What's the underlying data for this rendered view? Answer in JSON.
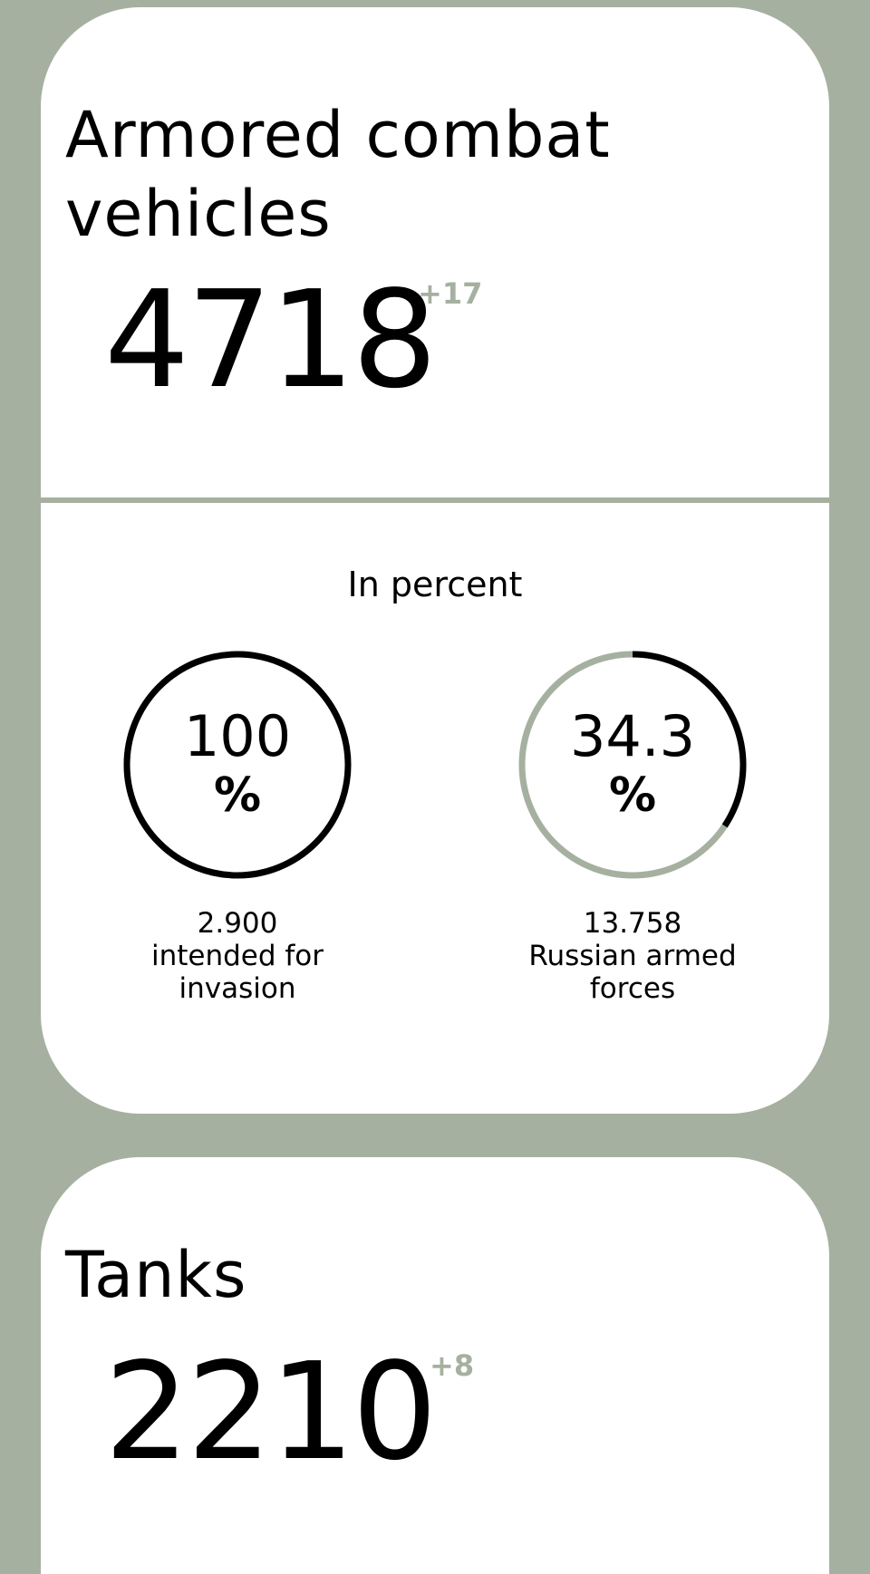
{
  "colors": {
    "background": "#a6b0a0",
    "card": "#ffffff",
    "text": "#000000",
    "accent": "#a6b0a0"
  },
  "armored": {
    "title": "Armored combat vehicles",
    "total": "4718",
    "delta": "+17"
  },
  "percent_section": {
    "label": "In percent",
    "rings": [
      {
        "value": "100",
        "unit": "%",
        "fraction": 1.0,
        "caption_number": "2.900",
        "caption_text": "intended for invasion"
      },
      {
        "value": "34.3",
        "unit": "%",
        "fraction": 0.343,
        "caption_number": "13.758",
        "caption_text": "Russian armed forces"
      }
    ]
  },
  "tanks": {
    "title": "Tanks",
    "total": "2210",
    "delta": "+8"
  }
}
